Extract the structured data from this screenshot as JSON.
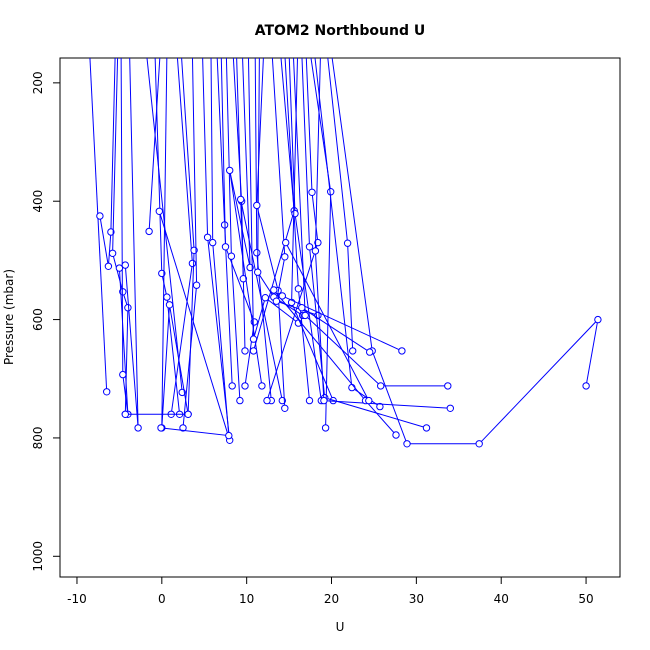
{
  "chart_data": {
    "type": "line",
    "title": "ATOM2 Northbound U",
    "xlabel": "U",
    "ylabel": "Pressure (mbar)",
    "xlim": [
      -12,
      54
    ],
    "ylim": [
      1035,
      158
    ],
    "y_reversed": true,
    "grid": false,
    "legend": "none",
    "color": "#0000ff",
    "marker": "open-circle",
    "x_ticks": [
      -10,
      0,
      10,
      20,
      30,
      40,
      50
    ],
    "y_ticks": [
      200,
      400,
      600,
      800,
      1000
    ],
    "series": [
      {
        "x": [
          -8.5,
          -6.5
        ],
        "y": [
          150,
          722
        ]
      },
      {
        "x": [
          -5.5,
          -6,
          -6.3,
          -7.3
        ],
        "y": [
          150,
          452,
          510,
          425
        ]
      },
      {
        "x": [
          -5.2,
          -5.8,
          -4.6,
          -4,
          -4.3
        ],
        "y": [
          150,
          488,
          553,
          580,
          760
        ]
      },
      {
        "x": [
          -4.8,
          -4.6,
          -4,
          -5
        ],
        "y": [
          150,
          693,
          760,
          513
        ]
      },
      {
        "x": [
          -3.8,
          -2.8,
          -4.3
        ],
        "y": [
          150,
          783,
          508
        ]
      },
      {
        "x": [
          -1.8,
          2.4
        ],
        "y": [
          150,
          723
        ]
      },
      {
        "x": [
          -0.2,
          -1.5
        ],
        "y": [
          150,
          451
        ]
      },
      {
        "x": [
          -0.8,
          0,
          0.6,
          2.1
        ],
        "y": [
          150,
          522,
          562,
          760
        ]
      },
      {
        "x": [
          0.6,
          0,
          0.9,
          3.1
        ],
        "y": [
          150,
          783,
          575,
          760
        ]
      },
      {
        "x": [
          1.8,
          3.6,
          1.1
        ],
        "y": [
          150,
          505,
          760
        ]
      },
      {
        "x": [
          2.3,
          3.8,
          3.1,
          -4.3
        ],
        "y": [
          150,
          483,
          760,
          760
        ]
      },
      {
        "x": [
          3.6,
          4.1,
          2.5
        ],
        "y": [
          150,
          542,
          783
        ]
      },
      {
        "x": [
          4.8,
          5.4,
          8,
          -0.3
        ],
        "y": [
          150,
          461,
          804,
          417
        ]
      },
      {
        "x": [
          5.8,
          6,
          7.9,
          -0.1
        ],
        "y": [
          150,
          470,
          796,
          783
        ]
      },
      {
        "x": [
          6.5,
          7.4,
          8.3
        ],
        "y": [
          150,
          440,
          712
        ]
      },
      {
        "x": [
          7,
          7.5,
          10.9,
          9.8
        ],
        "y": [
          150,
          477,
          604,
          712
        ]
      },
      {
        "x": [
          7.6,
          8.2,
          9.2
        ],
        "y": [
          150,
          493,
          737
        ]
      },
      {
        "x": [
          8.4,
          9.4,
          9.8
        ],
        "y": [
          150,
          400,
          653
        ]
      },
      {
        "x": [
          8.8,
          9.6,
          9.3,
          14.2
        ],
        "y": [
          150,
          531,
          397,
          737
        ]
      },
      {
        "x": [
          9.5,
          10.4,
          8,
          11.8
        ],
        "y": [
          150,
          512,
          348,
          712
        ]
      },
      {
        "x": [
          10.2,
          10.8,
          12.2,
          16.1
        ],
        "y": [
          150,
          633,
          563,
          606
        ]
      },
      {
        "x": [
          11,
          11.2,
          12.9
        ],
        "y": [
          150,
          487,
          737
        ]
      },
      {
        "x": [
          11.5,
          11.3,
          13.2,
          16.6
        ],
        "y": [
          150,
          520,
          562,
          593
        ]
      },
      {
        "x": [
          12,
          11.2,
          13.7,
          14.5
        ],
        "y": [
          150,
          407,
          551,
          750
        ]
      },
      {
        "x": [
          13,
          14.5,
          13.5,
          18.4
        ],
        "y": [
          150,
          494,
          569,
          593
        ]
      },
      {
        "x": [
          14,
          15.6,
          10.8
        ],
        "y": [
          150,
          416,
          653
        ]
      },
      {
        "x": [
          14.5,
          16.1,
          17.4
        ],
        "y": [
          150,
          548,
          737
        ]
      },
      {
        "x": [
          15,
          15.7,
          18.8
        ],
        "y": [
          150,
          421,
          737
        ]
      },
      {
        "x": [
          15.5,
          16.9,
          25.8,
          33.7
        ],
        "y": [
          150,
          593,
          712,
          712
        ]
      },
      {
        "x": [
          16,
          15.3,
          20.2
        ],
        "y": [
          150,
          571,
          737
        ]
      },
      {
        "x": [
          16.5,
          17.4,
          19.2,
          31.2
        ],
        "y": [
          150,
          477,
          732,
          783
        ]
      },
      {
        "x": [
          17,
          17.7,
          18.4,
          12.4
        ],
        "y": [
          150,
          385,
          470,
          737
        ]
      },
      {
        "x": [
          17.5,
          19.9,
          19.3
        ],
        "y": [
          150,
          384,
          783
        ]
      },
      {
        "x": [
          18,
          22.4,
          25.7
        ],
        "y": [
          150,
          715,
          747
        ]
      },
      {
        "x": [
          18.7,
          18.1,
          19.1,
          34
        ],
        "y": [
          150,
          484,
          737,
          750
        ]
      },
      {
        "x": [
          19.5,
          21.9,
          22.5
        ],
        "y": [
          150,
          471,
          653
        ]
      },
      {
        "x": [
          20,
          24.8,
          28.9,
          37.4,
          51.4,
          50
        ],
        "y": [
          150,
          653,
          810,
          810,
          600,
          712
        ]
      },
      {
        "x": [
          13.2,
          24,
          27.6
        ],
        "y": [
          550,
          737,
          795
        ]
      },
      {
        "x": [
          14.2,
          28.3
        ],
        "y": [
          560,
          653
        ]
      },
      {
        "x": [
          16.5,
          24.5
        ],
        "y": [
          580,
          655
        ]
      },
      {
        "x": [
          14.6,
          24.4
        ],
        "y": [
          470,
          737
        ]
      }
    ]
  }
}
